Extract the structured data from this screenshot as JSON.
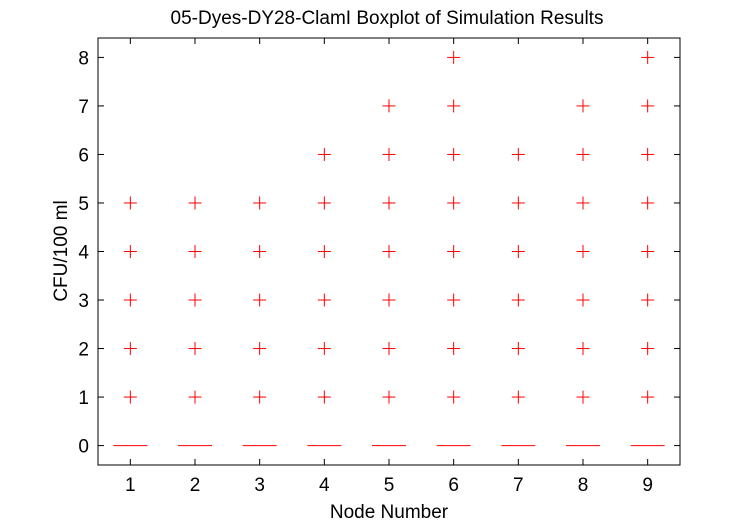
{
  "chart_data": {
    "type": "boxplot",
    "title": "05-Dyes-DY28-ClamI Boxplot of Simulation Results",
    "xlabel": "Node Number",
    "ylabel": "CFU/100 ml",
    "categories": [
      "1",
      "2",
      "3",
      "4",
      "5",
      "6",
      "7",
      "8",
      "9"
    ],
    "xlim": [
      0.5,
      9.5
    ],
    "ylim": [
      -0.4,
      8.4
    ],
    "yticks": [
      "0",
      "1",
      "2",
      "3",
      "4",
      "5",
      "6",
      "7",
      "8"
    ],
    "grid": false,
    "box_color": "#ff0000",
    "outlier_color": "#ff0000",
    "series": [
      {
        "x": 1,
        "median": 0,
        "q1": 0,
        "q3": 0,
        "outliers": [
          1,
          2,
          3,
          4,
          5
        ]
      },
      {
        "x": 2,
        "median": 0,
        "q1": 0,
        "q3": 0,
        "outliers": [
          1,
          2,
          3,
          4,
          5
        ]
      },
      {
        "x": 3,
        "median": 0,
        "q1": 0,
        "q3": 0,
        "outliers": [
          1,
          2,
          3,
          4,
          5
        ]
      },
      {
        "x": 4,
        "median": 0,
        "q1": 0,
        "q3": 0,
        "outliers": [
          1,
          2,
          3,
          4,
          5,
          6
        ]
      },
      {
        "x": 5,
        "median": 0,
        "q1": 0,
        "q3": 0,
        "outliers": [
          1,
          2,
          3,
          4,
          5,
          6,
          7
        ]
      },
      {
        "x": 6,
        "median": 0,
        "q1": 0,
        "q3": 0,
        "outliers": [
          1,
          2,
          3,
          4,
          5,
          6,
          7,
          8
        ]
      },
      {
        "x": 7,
        "median": 0,
        "q1": 0,
        "q3": 0,
        "outliers": [
          1,
          2,
          3,
          4,
          5,
          6
        ]
      },
      {
        "x": 8,
        "median": 0,
        "q1": 0,
        "q3": 0,
        "outliers": [
          1,
          2,
          3,
          4,
          5,
          6,
          7
        ]
      },
      {
        "x": 9,
        "median": 0,
        "q1": 0,
        "q3": 0,
        "outliers": [
          1,
          2,
          3,
          4,
          5,
          6,
          7,
          8
        ]
      }
    ]
  }
}
